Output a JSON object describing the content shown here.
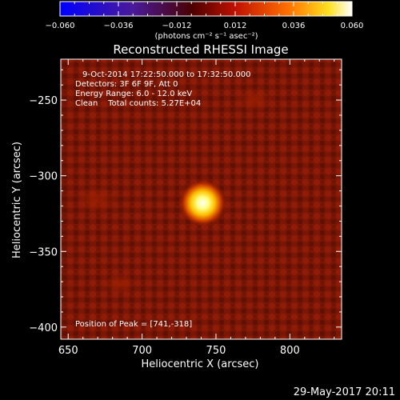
{
  "chart_data": {
    "type": "heatmap",
    "title": "Reconstructed RHESSI Image",
    "xlabel": "Heliocentric X (arcsec)",
    "ylabel": "Heliocentric Y (arcsec)",
    "xlim": [
      645,
      835
    ],
    "ylim": [
      -408,
      -223
    ],
    "x_ticks": [
      650,
      700,
      750,
      800
    ],
    "y_ticks": [
      -250,
      -300,
      -350,
      -400
    ],
    "colorbar": {
      "range": [
        -0.06,
        0.06
      ],
      "tick_labels": [
        "−0.060",
        "−0.036",
        "−0.012",
        "0.012",
        "0.036",
        "0.060"
      ],
      "unit_label": "(photons cm⁻² s⁻¹ asec⁻²)",
      "colormap": "blue-purple-red-yellow-white"
    },
    "info": {
      "time_range": "9-Oct-2014 17:22:50.000 to 17:32:50.000",
      "detectors": "Detectors: 3F 6F 9F, Att 0",
      "energy_range": "Energy Range: 6.0 - 12.0 keV",
      "method_counts": "Clean    Total counts: 5.27E+04"
    },
    "peak": {
      "label": "Position of Peak = [741,-318]",
      "x": 741,
      "y": -318,
      "value": 0.06
    },
    "background_value": 0.012
  },
  "footer": {
    "date": "29-May-2017 20:11"
  }
}
